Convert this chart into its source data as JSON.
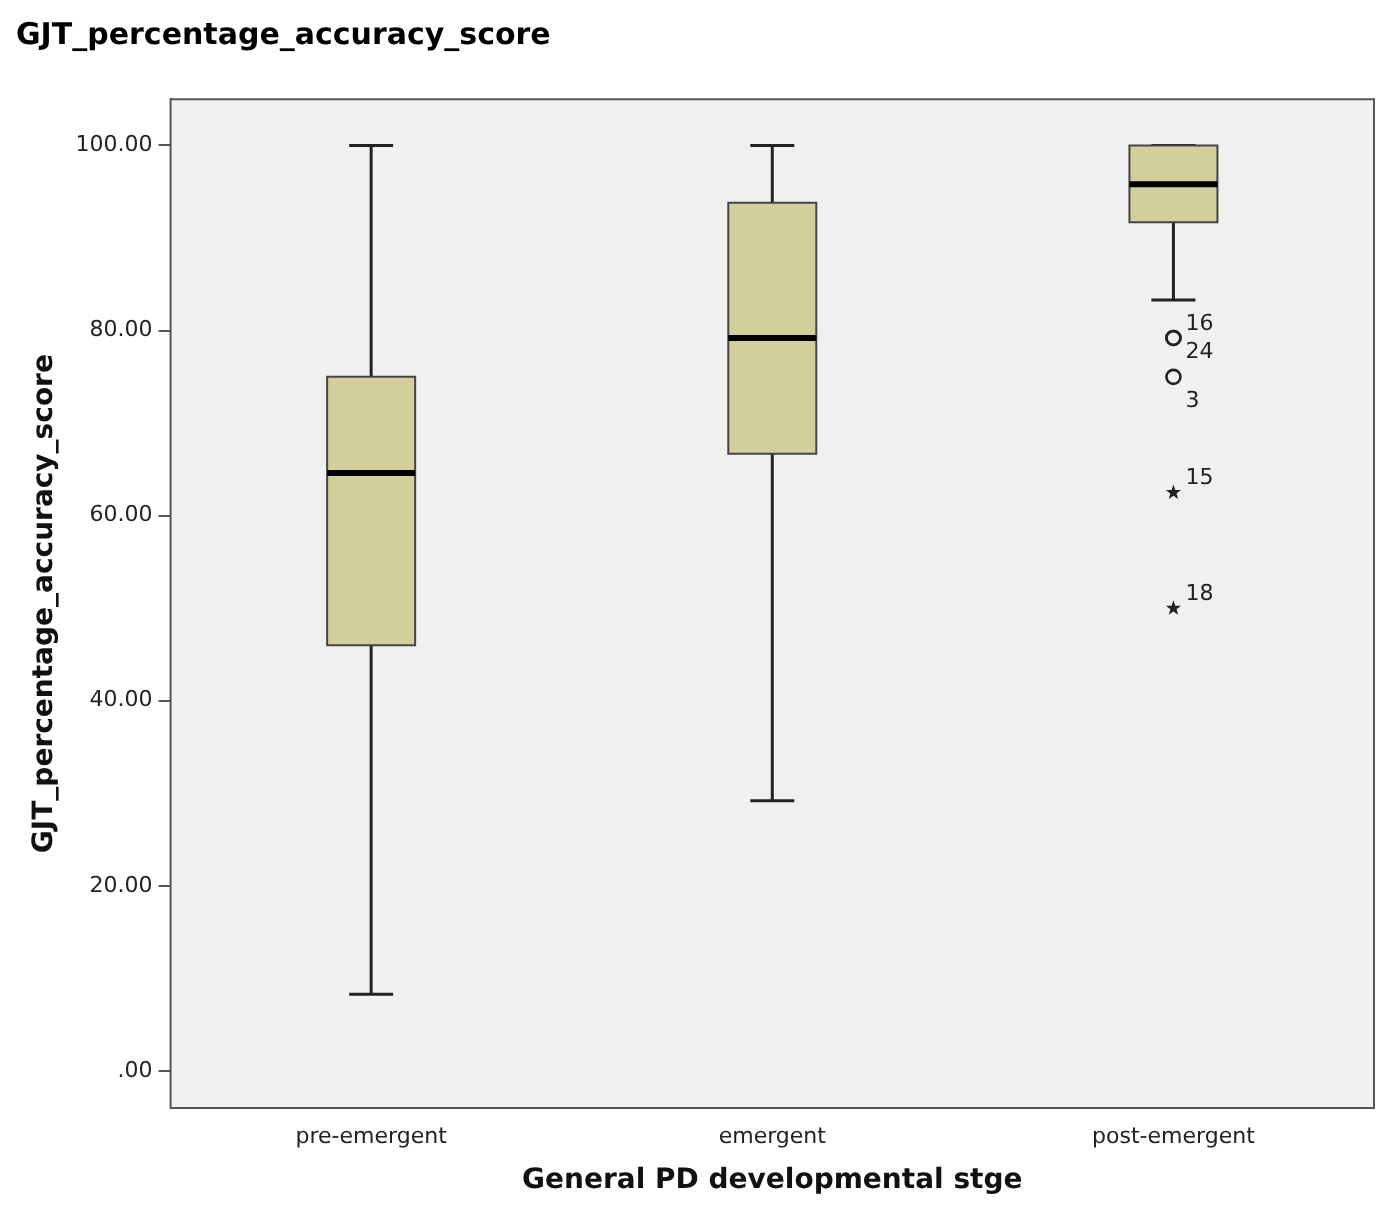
{
  "chart_data": {
    "type": "box",
    "title": "GJT_percentage_accuracy_score",
    "xlabel": "General PD developmental stge",
    "ylabel": "GJT_percentage_accuracy_score",
    "categories": [
      "pre-emergent",
      "emergent",
      "post-emergent"
    ],
    "color": "#d3cf9b",
    "boxes": [
      {
        "low": 8.3,
        "q1": 46,
        "median": 64.6,
        "q3": 75,
        "high": 100
      },
      {
        "low": 29.2,
        "q1": 66.7,
        "median": 79.2,
        "q3": 93.8,
        "high": 100
      },
      {
        "low": 83.3,
        "q1": 91.7,
        "median": 95.8,
        "q3": 100,
        "high": 100,
        "outliers": [
          79.2,
          79.2,
          75,
          62.5,
          50
        ]
      }
    ],
    "ylim": [
      -4,
      105
    ],
    "yticks": [
      {
        "value": 0,
        "label": ".00"
      },
      {
        "value": 20,
        "label": "20.00"
      },
      {
        "value": 40,
        "label": "40.00"
      },
      {
        "value": 60,
        "label": "60.00"
      },
      {
        "value": 80,
        "label": "80.00"
      },
      {
        "value": 100,
        "label": "100.00"
      }
    ],
    "annotations": [
      "16",
      "24",
      "3",
      "15",
      "18"
    ],
    "grid": false,
    "legend": false
  }
}
